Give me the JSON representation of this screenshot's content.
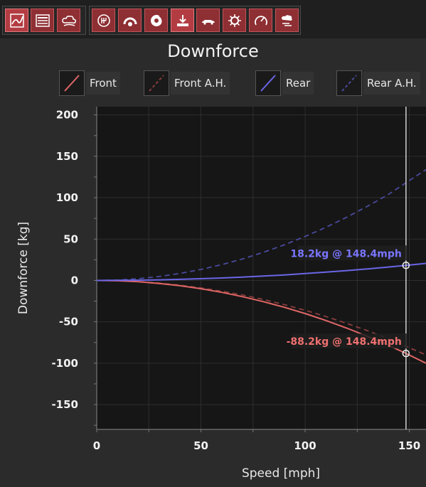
{
  "toolbar": {
    "buttons": [
      {
        "name": "telemetry-graph-icon",
        "active": true
      },
      {
        "name": "data-table-icon",
        "active": false
      },
      {
        "name": "aero-cloud-icon",
        "active": false
      },
      {
        "name": "gearbox-icon",
        "active": false
      },
      {
        "name": "tire-icon",
        "active": false
      },
      {
        "name": "brake-disc-icon",
        "active": false
      },
      {
        "name": "downforce-icon",
        "active": true
      },
      {
        "name": "car-side-icon",
        "active": false
      },
      {
        "name": "engine-cog-icon",
        "active": false
      },
      {
        "name": "gauge-icon",
        "active": false
      },
      {
        "name": "wind-icon",
        "active": false
      }
    ]
  },
  "chart_data": {
    "type": "line",
    "title": "Downforce",
    "xlabel": "Speed [mph]",
    "ylabel": "Downforce [kg]",
    "xlim": [
      0,
      158
    ],
    "ylim": [
      -180,
      210
    ],
    "x_ticks": [
      "0",
      "50",
      "100",
      "150"
    ],
    "y_ticks": [
      "200",
      "150",
      "100",
      "50",
      "0",
      "-50",
      "-100",
      "-150"
    ],
    "grid": true,
    "legend_position": "top",
    "x": [
      0,
      10,
      20,
      30,
      40,
      50,
      60,
      70,
      80,
      90,
      100,
      110,
      120,
      130,
      140,
      148.4,
      158
    ],
    "series": [
      {
        "name": "Front",
        "color": "#e06666",
        "style": "solid",
        "values": [
          0,
          -0.4,
          -1.6,
          -3.6,
          -6.4,
          -10.0,
          -14.4,
          -19.6,
          -25.6,
          -32.4,
          -40.0,
          -48.4,
          -57.6,
          -67.6,
          -78.4,
          -88.2,
          -100.0
        ]
      },
      {
        "name": "Front A.H.",
        "color": "#8a3d3d",
        "style": "dashed",
        "values": [
          0,
          -0.3,
          -1.4,
          -3.2,
          -5.8,
          -9.0,
          -13.0,
          -17.6,
          -23.0,
          -29.2,
          -36.0,
          -43.6,
          -51.8,
          -60.8,
          -70.6,
          -79.6,
          -90.0
        ]
      },
      {
        "name": "Rear",
        "color": "#6a66e6",
        "style": "solid",
        "values": [
          0,
          0.1,
          0.3,
          0.7,
          1.3,
          2.1,
          3.0,
          4.1,
          5.3,
          6.7,
          8.3,
          10.0,
          11.9,
          14.0,
          16.2,
          18.2,
          20.6
        ]
      },
      {
        "name": "Rear A.H.",
        "color": "#4a4a9e",
        "style": "dashed",
        "values": [
          0,
          0.5,
          2.1,
          4.8,
          8.5,
          13.3,
          19.1,
          26.0,
          34.0,
          43.0,
          53.1,
          64.2,
          76.4,
          89.7,
          104.0,
          118.0,
          134.0
        ]
      }
    ],
    "cursor": {
      "x": 148.4,
      "markers": [
        {
          "series": "Rear",
          "y": 18.2,
          "label": "18.2kg @ 148.4mph",
          "color": "#7a76ff"
        },
        {
          "series": "Front",
          "y": -88.2,
          "label": "-88.2kg @ 148.4mph",
          "color": "#f07070"
        }
      ]
    }
  }
}
